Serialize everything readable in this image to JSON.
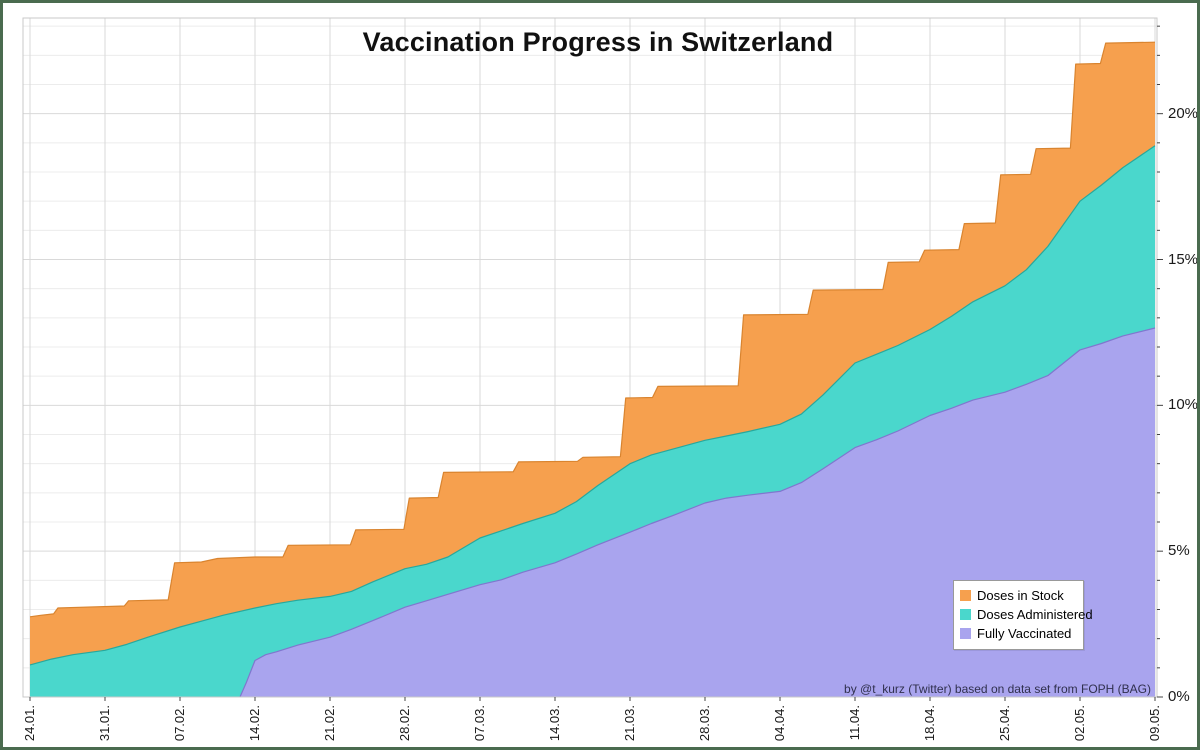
{
  "chart_data": {
    "type": "area",
    "title": "Vaccination Progress in Switzerland",
    "xlabel": "",
    "ylabel": "",
    "grid": true,
    "legend_position": "bottom-right",
    "x_axis": {
      "unit": "date (dd.mm.)",
      "tick_labels": [
        "24.01.",
        "31.01.",
        "07.02.",
        "14.02.",
        "21.02.",
        "28.02.",
        "07.03.",
        "14.03.",
        "21.03.",
        "28.03.",
        "04.04.",
        "11.04.",
        "18.04.",
        "25.04.",
        "02.05.",
        "09.05."
      ],
      "tick_days": [
        0,
        7,
        14,
        21,
        28,
        35,
        42,
        49,
        56,
        63,
        70,
        77,
        84,
        91,
        98,
        105
      ],
      "total_days": 105
    },
    "y_axis": {
      "unit": "% of population",
      "tick_labels": [
        "0%",
        "5%",
        "10%",
        "15%",
        "20%"
      ],
      "tick_values": [
        0,
        5,
        10,
        15,
        20
      ],
      "minor_step": 1,
      "max": 23.28
    },
    "series": [
      {
        "name": "Doses in Stock",
        "color": "#F6A04E",
        "stroke": "#D9842F",
        "shape": "steps",
        "points": [
          [
            0,
            2.75
          ],
          [
            1,
            2.8
          ],
          [
            2.2,
            2.85
          ],
          [
            2.6,
            3.05
          ],
          [
            5,
            3.08
          ],
          [
            8.8,
            3.12
          ],
          [
            9.2,
            3.3
          ],
          [
            12.9,
            3.33
          ],
          [
            13.5,
            4.6
          ],
          [
            16,
            4.63
          ],
          [
            17.5,
            4.75
          ],
          [
            21,
            4.8
          ],
          [
            23.6,
            4.8
          ],
          [
            24.1,
            5.2
          ],
          [
            29.9,
            5.22
          ],
          [
            30.4,
            5.73
          ],
          [
            34.9,
            5.75
          ],
          [
            35.4,
            6.82
          ],
          [
            38.1,
            6.84
          ],
          [
            38.6,
            7.7
          ],
          [
            45.1,
            7.72
          ],
          [
            45.6,
            8.06
          ],
          [
            51.1,
            8.08
          ],
          [
            51.6,
            8.22
          ],
          [
            55.1,
            8.24
          ],
          [
            55.6,
            10.25
          ],
          [
            58.1,
            10.27
          ],
          [
            58.6,
            10.65
          ],
          [
            66.1,
            10.67
          ],
          [
            66.6,
            13.1
          ],
          [
            72.6,
            13.12
          ],
          [
            73.1,
            13.95
          ],
          [
            79.6,
            13.97
          ],
          [
            80.1,
            14.9
          ],
          [
            83,
            14.92
          ],
          [
            83.5,
            15.32
          ],
          [
            86.7,
            15.34
          ],
          [
            87.2,
            16.23
          ],
          [
            90.1,
            16.25
          ],
          [
            90.6,
            17.9
          ],
          [
            93.4,
            17.92
          ],
          [
            93.9,
            18.8
          ],
          [
            97.1,
            18.82
          ],
          [
            97.6,
            21.7
          ],
          [
            99.9,
            21.72
          ],
          [
            100.4,
            22.42
          ],
          [
            105,
            22.45
          ]
        ]
      },
      {
        "name": "Doses Administered",
        "color": "#4AD7CC",
        "stroke": "#27A89D",
        "shape": "smooth",
        "points": [
          [
            0,
            1.1
          ],
          [
            2,
            1.3
          ],
          [
            4,
            1.45
          ],
          [
            7,
            1.6
          ],
          [
            9,
            1.8
          ],
          [
            11,
            2.05
          ],
          [
            14,
            2.4
          ],
          [
            16,
            2.6
          ],
          [
            18,
            2.8
          ],
          [
            21,
            3.05
          ],
          [
            23,
            3.2
          ],
          [
            25,
            3.32
          ],
          [
            28,
            3.45
          ],
          [
            30,
            3.62
          ],
          [
            32,
            3.95
          ],
          [
            35,
            4.4
          ],
          [
            37,
            4.55
          ],
          [
            39,
            4.8
          ],
          [
            42,
            5.45
          ],
          [
            44,
            5.7
          ],
          [
            46,
            5.95
          ],
          [
            49,
            6.3
          ],
          [
            51,
            6.7
          ],
          [
            53,
            7.25
          ],
          [
            56,
            8.0
          ],
          [
            58,
            8.3
          ],
          [
            60,
            8.5
          ],
          [
            63,
            8.8
          ],
          [
            65,
            8.95
          ],
          [
            67,
            9.1
          ],
          [
            70,
            9.35
          ],
          [
            72,
            9.7
          ],
          [
            74,
            10.35
          ],
          [
            77,
            11.45
          ],
          [
            79,
            11.75
          ],
          [
            81,
            12.05
          ],
          [
            84,
            12.6
          ],
          [
            86,
            13.05
          ],
          [
            88,
            13.55
          ],
          [
            91,
            14.1
          ],
          [
            93,
            14.65
          ],
          [
            95,
            15.45
          ],
          [
            98,
            17.0
          ],
          [
            100,
            17.55
          ],
          [
            102,
            18.15
          ],
          [
            105,
            18.9
          ]
        ]
      },
      {
        "name": "Fully Vaccinated",
        "color": "#A9A4EE",
        "stroke": "#7F77CE",
        "shape": "smooth",
        "points": [
          [
            19.6,
            0
          ],
          [
            20.2,
            0.5
          ],
          [
            21,
            1.25
          ],
          [
            22,
            1.45
          ],
          [
            23,
            1.55
          ],
          [
            25,
            1.78
          ],
          [
            28,
            2.05
          ],
          [
            30,
            2.32
          ],
          [
            32,
            2.62
          ],
          [
            35,
            3.08
          ],
          [
            37,
            3.3
          ],
          [
            39,
            3.52
          ],
          [
            42,
            3.85
          ],
          [
            44,
            4.02
          ],
          [
            46,
            4.28
          ],
          [
            49,
            4.6
          ],
          [
            51,
            4.9
          ],
          [
            53,
            5.22
          ],
          [
            56,
            5.65
          ],
          [
            58,
            5.95
          ],
          [
            60,
            6.22
          ],
          [
            63,
            6.65
          ],
          [
            65,
            6.82
          ],
          [
            67,
            6.92
          ],
          [
            70,
            7.05
          ],
          [
            72,
            7.35
          ],
          [
            74,
            7.82
          ],
          [
            77,
            8.55
          ],
          [
            79,
            8.82
          ],
          [
            81,
            9.12
          ],
          [
            84,
            9.65
          ],
          [
            86,
            9.9
          ],
          [
            88,
            10.18
          ],
          [
            91,
            10.45
          ],
          [
            93,
            10.72
          ],
          [
            95,
            11.02
          ],
          [
            98,
            11.9
          ],
          [
            100,
            12.12
          ],
          [
            102,
            12.38
          ],
          [
            105,
            12.65
          ]
        ]
      }
    ]
  },
  "attribution": "by @t_kurz (Twitter) based on data set from FOPH (BAG)",
  "colors": {
    "page_border": "#4A6B4F",
    "plot_frame": "#C9C9C9",
    "grid_major": "#D9D9D9",
    "grid_minor": "#ECECEC",
    "tick": "#444444",
    "axis_text": "#1A1A1A",
    "title_text": "#111111",
    "attribution_text": "#30304E",
    "legend_bg": "#FFFFFF",
    "legend_border": "#999999"
  }
}
